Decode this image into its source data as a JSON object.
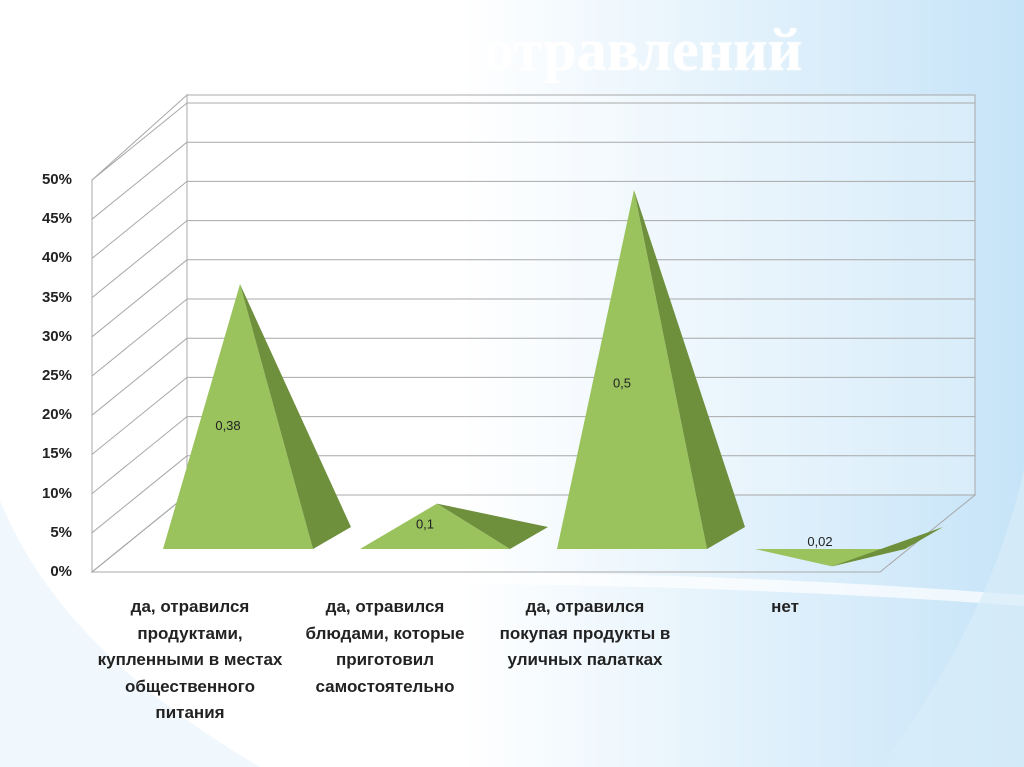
{
  "title": "Частота случаев отравлений",
  "colors": {
    "pyramid_front": "#9ac35e",
    "pyramid_side": "#6e8f3c",
    "grid": "#a8a8a8",
    "bg_gradient_end": "#c6e4f8"
  },
  "chart_data": {
    "type": "bar",
    "shape": "pyramid-3d",
    "title": "Частота случаев отравлений",
    "categories": [
      "да, отравился продуктами, купленными в местах общественного питания",
      "да, отравился блюдами, которые приготовил самостоятельно",
      "да, отравился покупая продукты в уличных палатках",
      "нет"
    ],
    "values": [
      0.38,
      0.1,
      0.5,
      0.02
    ],
    "data_labels": [
      "0,38",
      "0,1",
      "0,5",
      "0,02"
    ],
    "yticks": [
      "0%",
      "5%",
      "10%",
      "15%",
      "20%",
      "25%",
      "30%",
      "35%",
      "40%",
      "45%",
      "50%"
    ],
    "ylim": [
      0,
      0.5
    ],
    "grid": true,
    "legend": "none"
  }
}
